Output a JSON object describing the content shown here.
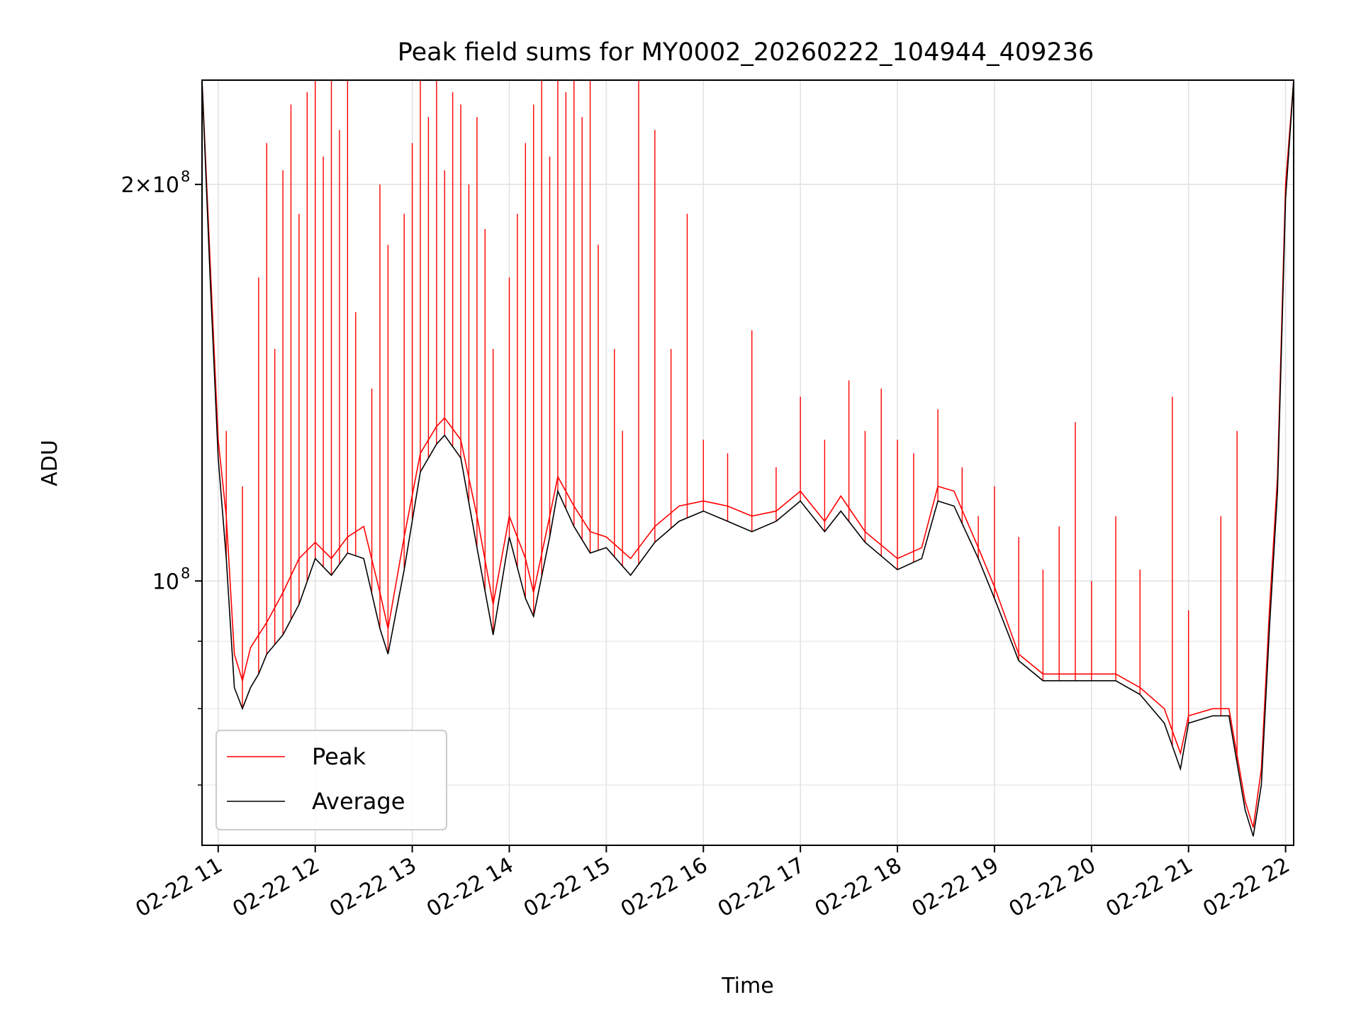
{
  "chart_data": {
    "type": "line",
    "title": "Peak field sums for MY0002_20260222_104944_409236",
    "xlabel": "Time",
    "ylabel": "ADU",
    "y_scale": "log",
    "xlim": [
      "2026-02-22T10:50",
      "2026-02-22T22:05"
    ],
    "ylim": [
      63000000,
      240000000
    ],
    "grid": true,
    "legend_position": "lower-left",
    "x_tick_labels": [
      "02-22 11",
      "02-22 12",
      "02-22 13",
      "02-22 14",
      "02-22 15",
      "02-22 16",
      "02-22 17",
      "02-22 18",
      "02-22 19",
      "02-22 20",
      "02-22 21",
      "02-22 22"
    ],
    "x_tick_times": [
      "2026-02-22T11:00",
      "2026-02-22T12:00",
      "2026-02-22T13:00",
      "2026-02-22T14:00",
      "2026-02-22T15:00",
      "2026-02-22T16:00",
      "2026-02-22T17:00",
      "2026-02-22T18:00",
      "2026-02-22T19:00",
      "2026-02-22T20:00",
      "2026-02-22T21:00",
      "2026-02-22T22:00"
    ],
    "y_major_ticks": [
      {
        "value": 100000000,
        "label": "10",
        "exp": "8"
      },
      {
        "value": 200000000,
        "label": "2×10",
        "exp": "8"
      }
    ],
    "y_minor_ticks": [
      70000000,
      80000000,
      90000000
    ],
    "series": [
      {
        "name": "Peak",
        "color": "#ff0000",
        "x": [
          "2026-02-22T10:50",
          "2026-02-22T10:55",
          "2026-02-22T11:00",
          "2026-02-22T11:05",
          "2026-02-22T11:10",
          "2026-02-22T11:15",
          "2026-02-22T11:20",
          "2026-02-22T11:25",
          "2026-02-22T11:30",
          "2026-02-22T11:40",
          "2026-02-22T11:50",
          "2026-02-22T12:00",
          "2026-02-22T12:10",
          "2026-02-22T12:20",
          "2026-02-22T12:30",
          "2026-02-22T12:40",
          "2026-02-22T12:45",
          "2026-02-22T12:55",
          "2026-02-22T13:05",
          "2026-02-22T13:15",
          "2026-02-22T13:20",
          "2026-02-22T13:30",
          "2026-02-22T13:40",
          "2026-02-22T13:50",
          "2026-02-22T14:00",
          "2026-02-22T14:10",
          "2026-02-22T14:15",
          "2026-02-22T14:25",
          "2026-02-22T14:30",
          "2026-02-22T14:40",
          "2026-02-22T14:50",
          "2026-02-22T15:00",
          "2026-02-22T15:15",
          "2026-02-22T15:30",
          "2026-02-22T15:45",
          "2026-02-22T16:00",
          "2026-02-22T16:15",
          "2026-02-22T16:30",
          "2026-02-22T16:45",
          "2026-02-22T17:00",
          "2026-02-22T17:15",
          "2026-02-22T17:25",
          "2026-02-22T17:40",
          "2026-02-22T18:00",
          "2026-02-22T18:15",
          "2026-02-22T18:25",
          "2026-02-22T18:35",
          "2026-02-22T18:50",
          "2026-02-22T19:00",
          "2026-02-22T19:15",
          "2026-02-22T19:30",
          "2026-02-22T19:45",
          "2026-02-22T20:00",
          "2026-02-22T20:15",
          "2026-02-22T20:30",
          "2026-02-22T20:45",
          "2026-02-22T20:55",
          "2026-02-22T21:00",
          "2026-02-22T21:15",
          "2026-02-22T21:25",
          "2026-02-22T21:35",
          "2026-02-22T21:40",
          "2026-02-22T21:45",
          "2026-02-22T21:50",
          "2026-02-22T21:55",
          "2026-02-22T22:00",
          "2026-02-22T22:05"
        ],
        "values": [
          240000000,
          175000000,
          128000000,
          112000000,
          88000000,
          84000000,
          89000000,
          91000000,
          93000000,
          98000000,
          104000000,
          107000000,
          104000000,
          108000000,
          110000000,
          98000000,
          92000000,
          108000000,
          125000000,
          131000000,
          133000000,
          128000000,
          112000000,
          96000000,
          112000000,
          104000000,
          98000000,
          112000000,
          120000000,
          114000000,
          109000000,
          108000000,
          104000000,
          110000000,
          114000000,
          115000000,
          114000000,
          112000000,
          113000000,
          117000000,
          111000000,
          116000000,
          109000000,
          104000000,
          106000000,
          118000000,
          117000000,
          106000000,
          99000000,
          88000000,
          85000000,
          85000000,
          85000000,
          85000000,
          83000000,
          80000000,
          74000000,
          79000000,
          80000000,
          80000000,
          68000000,
          65000000,
          72000000,
          95000000,
          120000000,
          200000000,
          240000000
        ]
      },
      {
        "name": "Average",
        "color": "#000000",
        "x": [
          "2026-02-22T10:50",
          "2026-02-22T10:55",
          "2026-02-22T11:00",
          "2026-02-22T11:05",
          "2026-02-22T11:10",
          "2026-02-22T11:15",
          "2026-02-22T11:20",
          "2026-02-22T11:25",
          "2026-02-22T11:30",
          "2026-02-22T11:40",
          "2026-02-22T11:50",
          "2026-02-22T12:00",
          "2026-02-22T12:10",
          "2026-02-22T12:20",
          "2026-02-22T12:30",
          "2026-02-22T12:40",
          "2026-02-22T12:45",
          "2026-02-22T12:55",
          "2026-02-22T13:05",
          "2026-02-22T13:15",
          "2026-02-22T13:20",
          "2026-02-22T13:30",
          "2026-02-22T13:40",
          "2026-02-22T13:50",
          "2026-02-22T14:00",
          "2026-02-22T14:10",
          "2026-02-22T14:15",
          "2026-02-22T14:25",
          "2026-02-22T14:30",
          "2026-02-22T14:40",
          "2026-02-22T14:50",
          "2026-02-22T15:00",
          "2026-02-22T15:15",
          "2026-02-22T15:30",
          "2026-02-22T15:45",
          "2026-02-22T16:00",
          "2026-02-22T16:15",
          "2026-02-22T16:30",
          "2026-02-22T16:45",
          "2026-02-22T17:00",
          "2026-02-22T17:15",
          "2026-02-22T17:25",
          "2026-02-22T17:40",
          "2026-02-22T18:00",
          "2026-02-22T18:15",
          "2026-02-22T18:25",
          "2026-02-22T18:35",
          "2026-02-22T18:50",
          "2026-02-22T19:00",
          "2026-02-22T19:15",
          "2026-02-22T19:30",
          "2026-02-22T19:45",
          "2026-02-22T20:00",
          "2026-02-22T20:15",
          "2026-02-22T20:30",
          "2026-02-22T20:45",
          "2026-02-22T20:55",
          "2026-02-22T21:00",
          "2026-02-22T21:15",
          "2026-02-22T21:25",
          "2026-02-22T21:35",
          "2026-02-22T21:40",
          "2026-02-22T21:45",
          "2026-02-22T21:50",
          "2026-02-22T21:55",
          "2026-02-22T22:00",
          "2026-02-22T22:05"
        ],
        "values": [
          240000000,
          170000000,
          124000000,
          104000000,
          83000000,
          80000000,
          83000000,
          85000000,
          88000000,
          91000000,
          96000000,
          104000000,
          101000000,
          105000000,
          104000000,
          92000000,
          88000000,
          102000000,
          121000000,
          127000000,
          129000000,
          124000000,
          106000000,
          91000000,
          108000000,
          97000000,
          94000000,
          108000000,
          117000000,
          110000000,
          105000000,
          106000000,
          101000000,
          107000000,
          111000000,
          113000000,
          111000000,
          109000000,
          111000000,
          115000000,
          109000000,
          113000000,
          107000000,
          102000000,
          104000000,
          115000000,
          114000000,
          104000000,
          97000000,
          87000000,
          84000000,
          84000000,
          84000000,
          84000000,
          82000000,
          78000000,
          72000000,
          78000000,
          79000000,
          79000000,
          67000000,
          64000000,
          70000000,
          92000000,
          117000000,
          195000000,
          240000000
        ]
      }
    ],
    "peak_spikes": [
      {
        "t": "2026-02-22T11:05",
        "v": 130000000
      },
      {
        "t": "2026-02-22T11:15",
        "v": 118000000
      },
      {
        "t": "2026-02-22T11:25",
        "v": 170000000
      },
      {
        "t": "2026-02-22T11:30",
        "v": 215000000
      },
      {
        "t": "2026-02-22T11:35",
        "v": 150000000
      },
      {
        "t": "2026-02-22T11:40",
        "v": 205000000
      },
      {
        "t": "2026-02-22T11:45",
        "v": 230000000
      },
      {
        "t": "2026-02-22T11:50",
        "v": 190000000
      },
      {
        "t": "2026-02-22T11:55",
        "v": 235000000
      },
      {
        "t": "2026-02-22T12:00",
        "v": 240000000
      },
      {
        "t": "2026-02-22T12:05",
        "v": 210000000
      },
      {
        "t": "2026-02-22T12:10",
        "v": 240000000
      },
      {
        "t": "2026-02-22T12:15",
        "v": 220000000
      },
      {
        "t": "2026-02-22T12:20",
        "v": 240000000
      },
      {
        "t": "2026-02-22T12:25",
        "v": 160000000
      },
      {
        "t": "2026-02-22T12:35",
        "v": 140000000
      },
      {
        "t": "2026-02-22T12:40",
        "v": 200000000
      },
      {
        "t": "2026-02-22T12:45",
        "v": 180000000
      },
      {
        "t": "2026-02-22T12:55",
        "v": 190000000
      },
      {
        "t": "2026-02-22T13:00",
        "v": 215000000
      },
      {
        "t": "2026-02-22T13:05",
        "v": 240000000
      },
      {
        "t": "2026-02-22T13:10",
        "v": 225000000
      },
      {
        "t": "2026-02-22T13:15",
        "v": 240000000
      },
      {
        "t": "2026-02-22T13:20",
        "v": 205000000
      },
      {
        "t": "2026-02-22T13:25",
        "v": 235000000
      },
      {
        "t": "2026-02-22T13:30",
        "v": 230000000
      },
      {
        "t": "2026-02-22T13:35",
        "v": 200000000
      },
      {
        "t": "2026-02-22T13:40",
        "v": 225000000
      },
      {
        "t": "2026-02-22T13:45",
        "v": 185000000
      },
      {
        "t": "2026-02-22T13:50",
        "v": 150000000
      },
      {
        "t": "2026-02-22T14:00",
        "v": 170000000
      },
      {
        "t": "2026-02-22T14:05",
        "v": 190000000
      },
      {
        "t": "2026-02-22T14:10",
        "v": 215000000
      },
      {
        "t": "2026-02-22T14:15",
        "v": 230000000
      },
      {
        "t": "2026-02-22T14:20",
        "v": 240000000
      },
      {
        "t": "2026-02-22T14:25",
        "v": 210000000
      },
      {
        "t": "2026-02-22T14:30",
        "v": 240000000
      },
      {
        "t": "2026-02-22T14:35",
        "v": 235000000
      },
      {
        "t": "2026-02-22T14:40",
        "v": 240000000
      },
      {
        "t": "2026-02-22T14:45",
        "v": 225000000
      },
      {
        "t": "2026-02-22T14:50",
        "v": 240000000
      },
      {
        "t": "2026-02-22T14:55",
        "v": 180000000
      },
      {
        "t": "2026-02-22T15:05",
        "v": 150000000
      },
      {
        "t": "2026-02-22T15:10",
        "v": 130000000
      },
      {
        "t": "2026-02-22T15:20",
        "v": 240000000
      },
      {
        "t": "2026-02-22T15:30",
        "v": 220000000
      },
      {
        "t": "2026-02-22T15:40",
        "v": 150000000
      },
      {
        "t": "2026-02-22T15:50",
        "v": 190000000
      },
      {
        "t": "2026-02-22T16:00",
        "v": 128000000
      },
      {
        "t": "2026-02-22T16:15",
        "v": 125000000
      },
      {
        "t": "2026-02-22T16:30",
        "v": 155000000
      },
      {
        "t": "2026-02-22T16:45",
        "v": 122000000
      },
      {
        "t": "2026-02-22T17:00",
        "v": 138000000
      },
      {
        "t": "2026-02-22T17:15",
        "v": 128000000
      },
      {
        "t": "2026-02-22T17:30",
        "v": 142000000
      },
      {
        "t": "2026-02-22T17:40",
        "v": 130000000
      },
      {
        "t": "2026-02-22T17:50",
        "v": 140000000
      },
      {
        "t": "2026-02-22T18:00",
        "v": 128000000
      },
      {
        "t": "2026-02-22T18:10",
        "v": 125000000
      },
      {
        "t": "2026-02-22T18:25",
        "v": 135000000
      },
      {
        "t": "2026-02-22T18:40",
        "v": 122000000
      },
      {
        "t": "2026-02-22T18:50",
        "v": 112000000
      },
      {
        "t": "2026-02-22T19:00",
        "v": 118000000
      },
      {
        "t": "2026-02-22T19:15",
        "v": 108000000
      },
      {
        "t": "2026-02-22T19:30",
        "v": 102000000
      },
      {
        "t": "2026-02-22T19:40",
        "v": 110000000
      },
      {
        "t": "2026-02-22T19:50",
        "v": 132000000
      },
      {
        "t": "2026-02-22T20:00",
        "v": 100000000
      },
      {
        "t": "2026-02-22T20:15",
        "v": 112000000
      },
      {
        "t": "2026-02-22T20:30",
        "v": 102000000
      },
      {
        "t": "2026-02-22T20:50",
        "v": 138000000
      },
      {
        "t": "2026-02-22T21:00",
        "v": 95000000
      },
      {
        "t": "2026-02-22T21:20",
        "v": 112000000
      },
      {
        "t": "2026-02-22T21:30",
        "v": 130000000
      }
    ]
  }
}
